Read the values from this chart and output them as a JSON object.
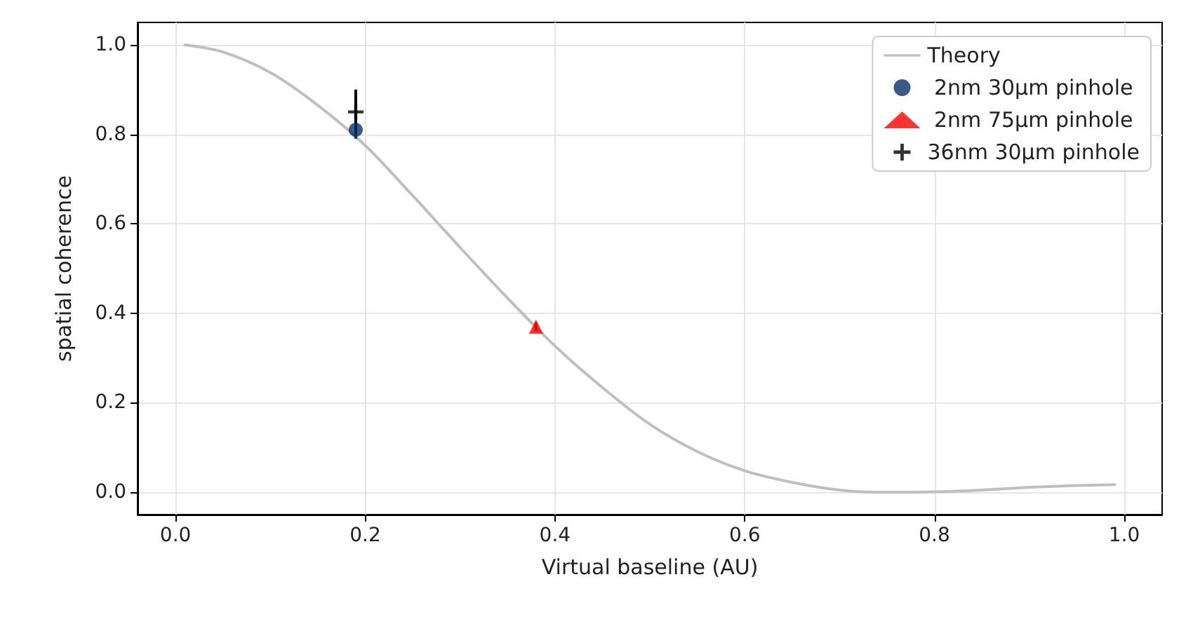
{
  "chart_data": {
    "type": "scatter",
    "xlabel": "Virtual baseline (AU)",
    "ylabel": "spatial coherence",
    "xlim": [
      -0.04,
      1.04
    ],
    "ylim": [
      -0.05,
      1.05
    ],
    "xticks": [
      {
        "value": 0,
        "label": "0.0"
      },
      {
        "value": 0.2,
        "label": "0.2"
      },
      {
        "value": 0.4,
        "label": "0.4"
      },
      {
        "value": 0.6,
        "label": "0.6"
      },
      {
        "value": 0.8,
        "label": "0.8"
      },
      {
        "value": 1,
        "label": "1.0"
      }
    ],
    "yticks": [
      {
        "value": 0,
        "label": "0.0"
      },
      {
        "value": 0.2,
        "label": "0.2"
      },
      {
        "value": 0.4,
        "label": "0.4"
      },
      {
        "value": 0.6,
        "label": "0.6"
      },
      {
        "value": 0.8,
        "label": "0.8"
      },
      {
        "value": 1,
        "label": "1.0"
      }
    ],
    "grid": true,
    "legend": "top right",
    "series": [
      {
        "name": "Theory",
        "type": "line",
        "color": "#bfbfbf",
        "marker": "none",
        "line_style": "solid",
        "x": [
          0.01,
          0.05,
          0.1,
          0.15,
          0.2,
          0.25,
          0.3,
          0.35,
          0.4,
          0.45,
          0.5,
          0.55,
          0.6,
          0.65,
          0.7,
          0.75,
          0.8,
          0.85,
          0.9,
          0.95,
          0.99
        ],
        "values": [
          1.0,
          0.984,
          0.938,
          0.865,
          0.775,
          0.663,
          0.547,
          0.434,
          0.327,
          0.234,
          0.152,
          0.091,
          0.048,
          0.022,
          0.005,
          0.0,
          0.001,
          0.005,
          0.011,
          0.015,
          0.017
        ]
      },
      {
        "name": " 2nm 30µm pinhole",
        "color": "#08306b",
        "marker": "circle",
        "x": [
          0.19
        ],
        "values": [
          0.81
        ],
        "errors": [
          0.02
        ]
      },
      {
        "name": " 2nm 75µm pinhole",
        "color": "#ff0000",
        "marker": "triangle",
        "x": [
          0.38
        ],
        "values": [
          0.37
        ],
        "errors": [
          0.01
        ]
      },
      {
        "name": "36nm 30µm pinhole",
        "color": "#000000",
        "marker": "cross",
        "x": [
          0.19
        ],
        "values": [
          0.85
        ],
        "errors": [
          0.05
        ]
      }
    ]
  }
}
